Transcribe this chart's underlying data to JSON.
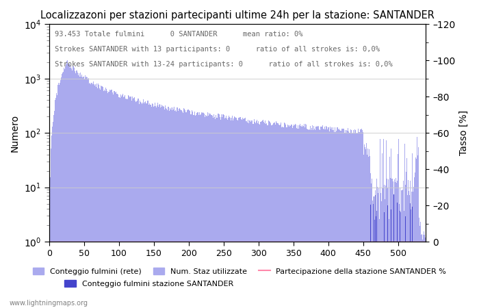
{
  "title": "Localizzazoni per stazioni partecipanti ultime 24h per la stazione: SANTANDER",
  "annotation_line1": "93.453 Totale fulmini      0 SANTANDER      mean ratio: 0%",
  "annotation_line2": "Strokes SANTANDER with 13 participants: 0      ratio of all strokes is: 0,0%",
  "annotation_line3": "Strokes SANTANDER with 13-24 participants: 0      ratio of all strokes is: 0,0%",
  "ylabel_left": "Numero",
  "ylabel_right": "Tasso [%]",
  "bar_color_main": "#aaaaee",
  "bar_color_station": "#4444cc",
  "line_color_participation": "#ff88aa",
  "watermark": "www.lightningmaps.org",
  "xlim": [
    0,
    540
  ],
  "ylim_right": [
    0,
    120
  ],
  "num_bins": 540,
  "seed": 42
}
